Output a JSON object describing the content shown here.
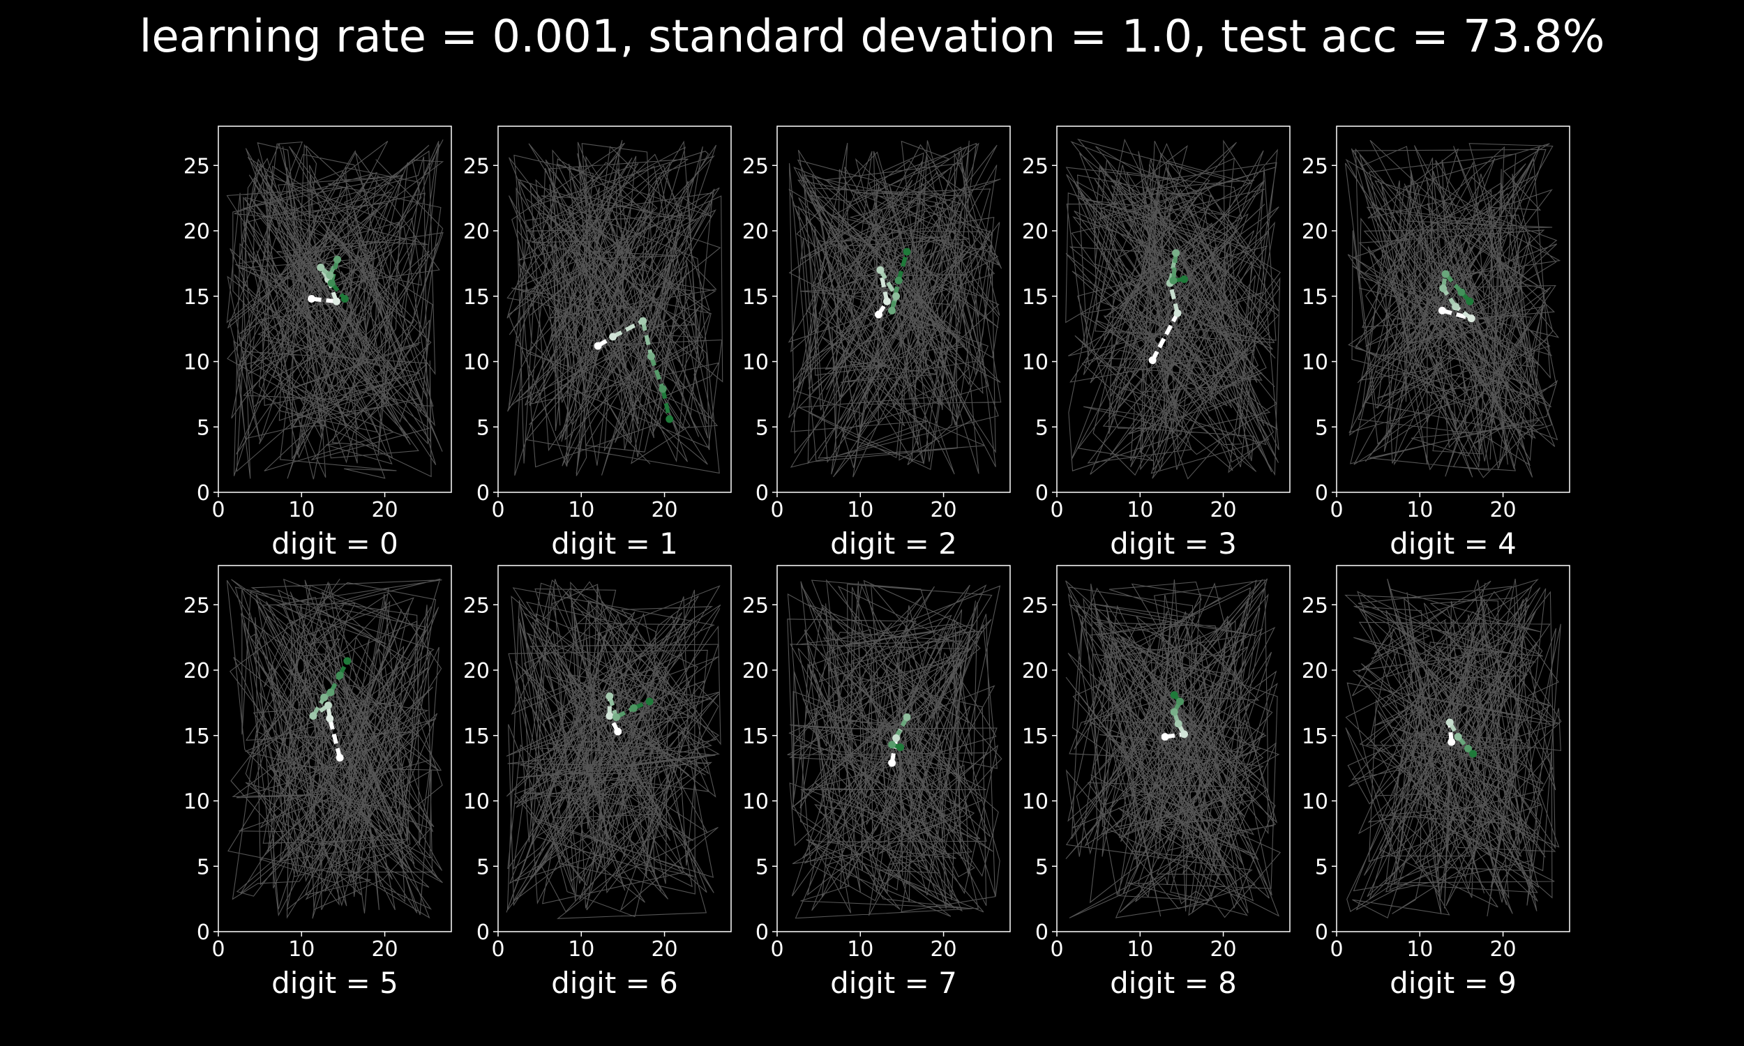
{
  "title": "learning rate = 0.001, standard devation = 1.0, test acc = 73.8%",
  "colors": {
    "background": "#000000",
    "frame": "#ffffff",
    "text": "#ffffff",
    "noise_lines": "#9a9a9a",
    "path_start": "#ffffff",
    "path_end": "#1f7a3a"
  },
  "chart_data": [
    {
      "type": "line",
      "subtitle": "digit = 0",
      "xlim": [
        0,
        28
      ],
      "ylim": [
        0,
        28
      ],
      "xticks": [
        0,
        10,
        20
      ],
      "yticks": [
        0,
        5,
        10,
        15,
        20,
        25
      ],
      "series": [
        {
          "x": [
            11.2,
            14.2,
            13.2,
            12.3,
            13.4,
            14.3,
            13.6,
            15.2
          ],
          "y": [
            14.8,
            14.6,
            16.3,
            17.2,
            16.6,
            17.8,
            16.0,
            14.8
          ]
        }
      ]
    },
    {
      "type": "line",
      "subtitle": "digit = 1",
      "xlim": [
        0,
        28
      ],
      "ylim": [
        0,
        28
      ],
      "xticks": [
        0,
        10,
        20
      ],
      "yticks": [
        0,
        5,
        10,
        15,
        20,
        25
      ],
      "series": [
        {
          "x": [
            12.0,
            13.8,
            17.4,
            18.4,
            19.8,
            20.6
          ],
          "y": [
            11.2,
            11.9,
            13.1,
            10.4,
            7.9,
            5.6
          ]
        }
      ]
    },
    {
      "type": "line",
      "subtitle": "digit = 2",
      "xlim": [
        0,
        28
      ],
      "ylim": [
        0,
        28
      ],
      "xticks": [
        0,
        10,
        20
      ],
      "yticks": [
        0,
        5,
        10,
        15,
        20,
        25
      ],
      "series": [
        {
          "x": [
            12.2,
            13.2,
            12.4,
            14.3,
            13.8,
            14.6,
            15.6
          ],
          "y": [
            13.6,
            14.6,
            17.0,
            15.0,
            13.9,
            16.2,
            18.4
          ]
        }
      ]
    },
    {
      "type": "line",
      "subtitle": "digit = 3",
      "xlim": [
        0,
        28
      ],
      "ylim": [
        0,
        28
      ],
      "xticks": [
        0,
        10,
        20
      ],
      "yticks": [
        0,
        5,
        10,
        15,
        20,
        25
      ],
      "series": [
        {
          "x": [
            11.5,
            14.5,
            13.6,
            14.3,
            14.0,
            15.3
          ],
          "y": [
            10.1,
            13.7,
            16.0,
            18.3,
            16.2,
            16.3
          ]
        }
      ]
    },
    {
      "type": "line",
      "subtitle": "digit = 4",
      "xlim": [
        0,
        28
      ],
      "ylim": [
        0,
        28
      ],
      "xticks": [
        0,
        10,
        20
      ],
      "yticks": [
        0,
        5,
        10,
        15,
        20,
        25
      ],
      "series": [
        {
          "x": [
            12.7,
            16.2,
            14.3,
            12.8,
            13.1,
            15.0,
            16.0
          ],
          "y": [
            13.9,
            13.3,
            14.2,
            15.6,
            16.7,
            15.3,
            14.6
          ]
        }
      ]
    },
    {
      "type": "line",
      "subtitle": "digit = 5",
      "xlim": [
        0,
        28
      ],
      "ylim": [
        0,
        28
      ],
      "xticks": [
        0,
        10,
        20
      ],
      "yticks": [
        0,
        5,
        10,
        15,
        20,
        25
      ],
      "series": [
        {
          "x": [
            14.6,
            13.4,
            13.2,
            11.4,
            12.7,
            13.5,
            14.6,
            15.5
          ],
          "y": [
            13.3,
            16.3,
            17.3,
            16.5,
            17.9,
            18.3,
            19.6,
            20.7
          ]
        }
      ]
    },
    {
      "type": "line",
      "subtitle": "digit = 6",
      "xlim": [
        0,
        28
      ],
      "ylim": [
        0,
        28
      ],
      "xticks": [
        0,
        10,
        20
      ],
      "yticks": [
        0,
        5,
        10,
        15,
        20,
        25
      ],
      "series": [
        {
          "x": [
            14.4,
            13.4,
            13.4,
            14.2,
            16.3,
            18.2
          ],
          "y": [
            15.3,
            16.5,
            18.0,
            16.4,
            17.1,
            17.6
          ]
        }
      ]
    },
    {
      "type": "line",
      "subtitle": "digit = 7",
      "xlim": [
        0,
        28
      ],
      "ylim": [
        0,
        28
      ],
      "xticks": [
        0,
        10,
        20
      ],
      "yticks": [
        0,
        5,
        10,
        15,
        20,
        25
      ],
      "series": [
        {
          "x": [
            13.8,
            14.3,
            15.6,
            13.8,
            14.8
          ],
          "y": [
            12.9,
            14.8,
            16.4,
            14.3,
            14.1
          ]
        }
      ]
    },
    {
      "type": "line",
      "subtitle": "digit = 8",
      "xlim": [
        0,
        28
      ],
      "ylim": [
        0,
        28
      ],
      "xticks": [
        0,
        10,
        20
      ],
      "yticks": [
        0,
        5,
        10,
        15,
        20,
        25
      ],
      "series": [
        {
          "x": [
            13.0,
            15.3,
            14.6,
            14.1,
            14.8,
            14.1
          ],
          "y": [
            14.9,
            15.1,
            15.9,
            16.8,
            17.6,
            18.1
          ]
        }
      ]
    },
    {
      "type": "line",
      "subtitle": "digit = 9",
      "xlim": [
        0,
        28
      ],
      "ylim": [
        0,
        28
      ],
      "xticks": [
        0,
        10,
        20
      ],
      "yticks": [
        0,
        5,
        10,
        15,
        20,
        25
      ],
      "series": [
        {
          "x": [
            13.8,
            13.6,
            14.6,
            15.8,
            16.4
          ],
          "y": [
            14.5,
            16.0,
            14.9,
            14.0,
            13.6
          ]
        }
      ]
    }
  ]
}
